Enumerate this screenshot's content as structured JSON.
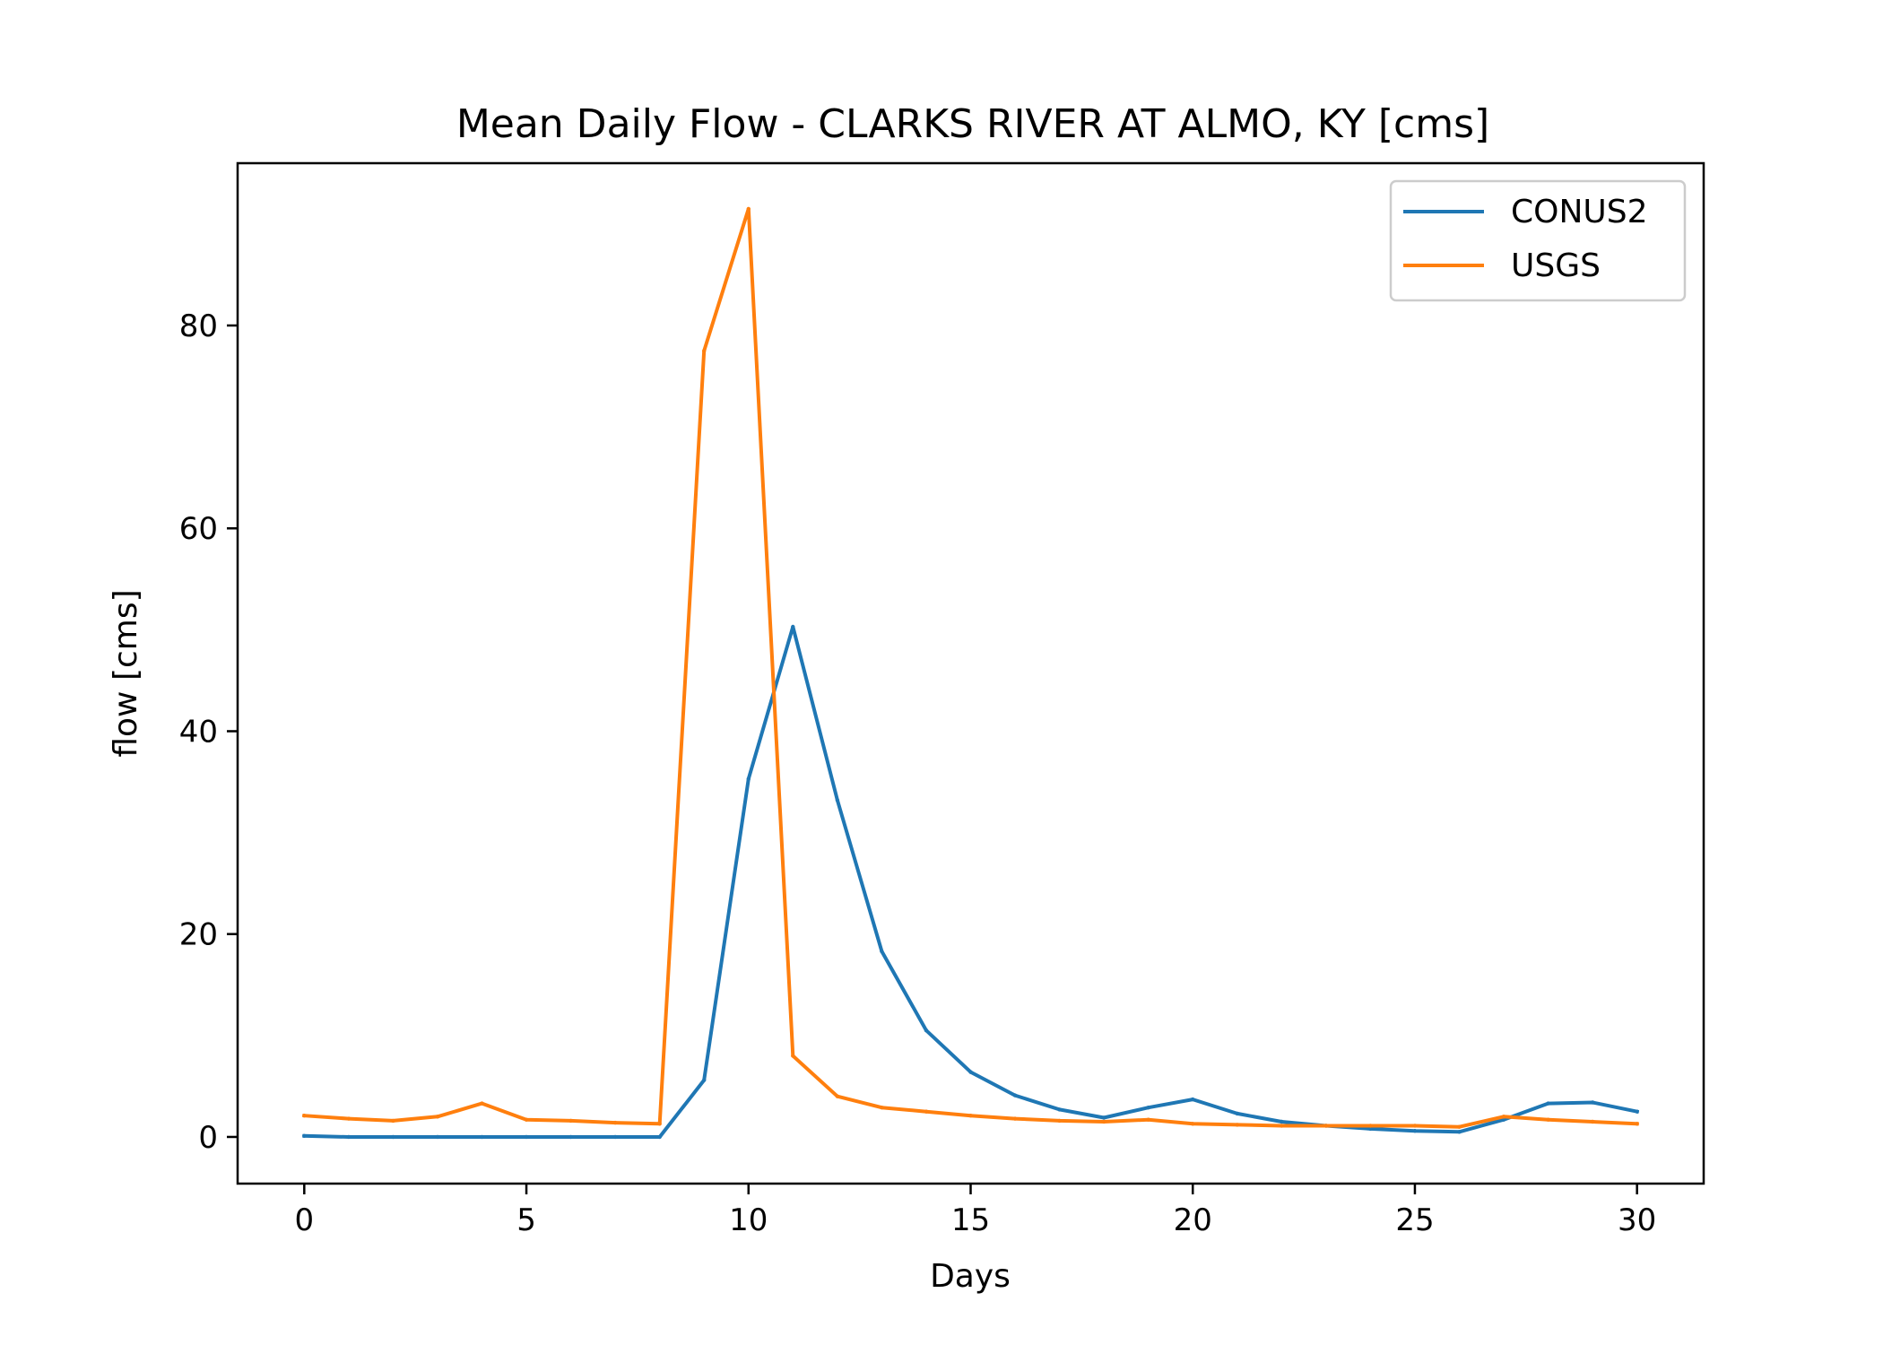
{
  "chart_data": {
    "type": "line",
    "title": "Mean Daily Flow - CLARKS RIVER AT ALMO, KY [cms]",
    "xlabel": "Days",
    "ylabel": "flow [cms]",
    "xlim": [
      -1.5,
      31.5
    ],
    "ylim": [
      -4.6,
      96.0
    ],
    "xticks": [
      0,
      5,
      10,
      15,
      20,
      25,
      30
    ],
    "yticks": [
      0,
      20,
      40,
      60,
      80
    ],
    "grid": false,
    "legend_position": "upper right",
    "x": [
      0,
      1,
      2,
      3,
      4,
      5,
      6,
      7,
      8,
      9,
      10,
      11,
      12,
      13,
      14,
      15,
      16,
      17,
      18,
      19,
      20,
      21,
      22,
      23,
      24,
      25,
      26,
      27,
      28,
      29,
      30
    ],
    "series": [
      {
        "name": "CONUS2",
        "color": "#1f77b4",
        "values": [
          0.1,
          0.0,
          0.0,
          0.0,
          0.0,
          0.0,
          0.0,
          0.0,
          0.0,
          5.6,
          35.3,
          50.3,
          33.2,
          18.3,
          10.5,
          6.4,
          4.1,
          2.7,
          1.9,
          2.9,
          3.7,
          2.3,
          1.5,
          1.1,
          0.8,
          0.6,
          0.5,
          1.7,
          3.3,
          3.4,
          2.5
        ]
      },
      {
        "name": "USGS",
        "color": "#ff7f0e",
        "values": [
          2.1,
          1.8,
          1.6,
          2.0,
          3.3,
          1.7,
          1.6,
          1.4,
          1.3,
          77.5,
          91.5,
          8.0,
          4.0,
          2.9,
          2.5,
          2.1,
          1.8,
          1.6,
          1.5,
          1.7,
          1.3,
          1.2,
          1.1,
          1.1,
          1.1,
          1.1,
          1.0,
          2.0,
          1.7,
          1.5,
          1.3
        ]
      }
    ]
  }
}
